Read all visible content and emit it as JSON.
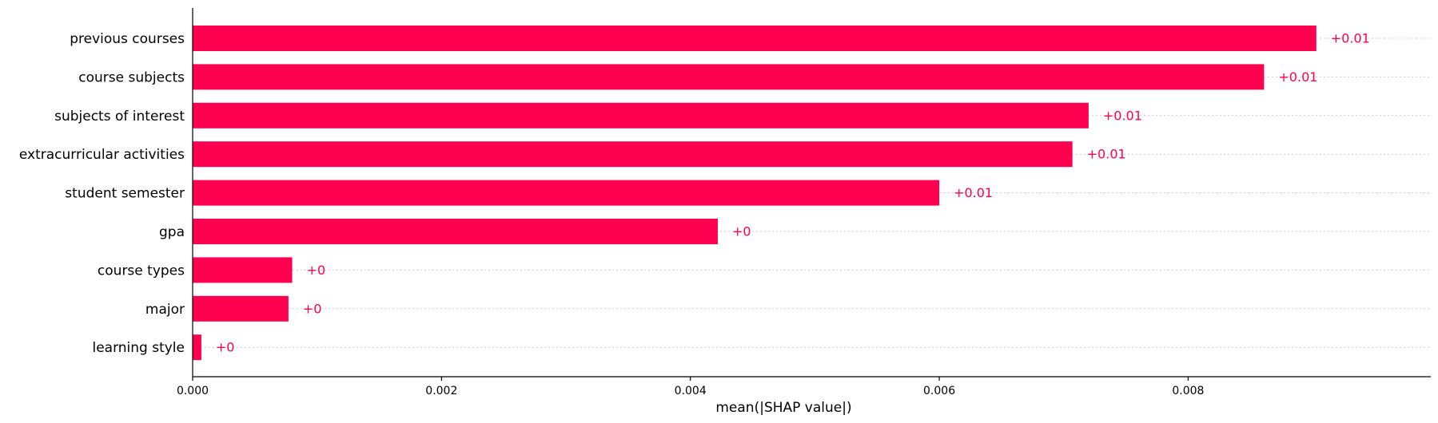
{
  "chart_data": {
    "type": "bar",
    "orientation": "horizontal",
    "categories": [
      "previous courses",
      "course subjects",
      "subjects of interest",
      "extracurricular activities",
      "student semester",
      "gpa",
      "course types",
      "major",
      "learning style"
    ],
    "values": [
      0.00903,
      0.00861,
      0.0072,
      0.00707,
      0.006,
      0.00422,
      0.0008,
      0.00077,
      7e-05
    ],
    "value_labels": [
      "+0.01",
      "+0.01",
      "+0.01",
      "+0.01",
      "+0.01",
      "+0",
      "+0",
      "+0",
      "+0"
    ],
    "xlabel": "mean(|SHAP value|)",
    "ylabel": "",
    "title": "",
    "xlim": [
      0,
      0.00995
    ],
    "xticks": [
      0,
      0.002,
      0.004,
      0.006,
      0.008
    ],
    "xtick_labels": [
      "0.000",
      "0.002",
      "0.004",
      "0.006",
      "0.008"
    ],
    "grid": "horizontal dotted per row",
    "bar_color": "#ff0051"
  }
}
